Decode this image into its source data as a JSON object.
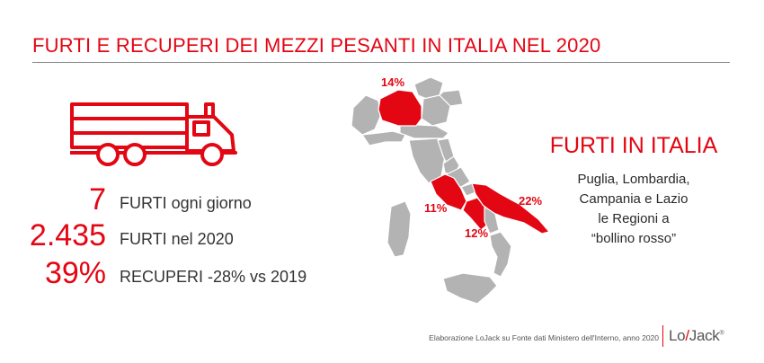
{
  "title": "FURTI E RECUPERI DEI MEZZI PESANTI IN ITALIA NEL 2020",
  "stats": [
    {
      "value": "7",
      "label": "FURTI ogni giorno"
    },
    {
      "value": "2.435",
      "label": "FURTI nel 2020"
    },
    {
      "value": "39%",
      "label": "RECUPERI -28% vs 2019"
    }
  ],
  "map": {
    "labels": {
      "lombardia": "14%",
      "lazio": "11%",
      "campania": "12%",
      "puglia": "22%"
    },
    "highlight_color": "#e30613",
    "base_color": "#b3b3b3"
  },
  "side": {
    "title": "FURTI IN ITALIA",
    "lines": [
      "Puglia, Lombardia,",
      "Campania e Lazio",
      "le Regioni a",
      "“bollino rosso”"
    ]
  },
  "source": "Elaborazione LoJack su Fonte dati Ministero dell'Interno, anno 2020",
  "logo": {
    "left": "Lo",
    "slash": "/",
    "right": "Jack",
    "mark": "®"
  },
  "colors": {
    "accent": "#e30613",
    "text": "#333333"
  }
}
